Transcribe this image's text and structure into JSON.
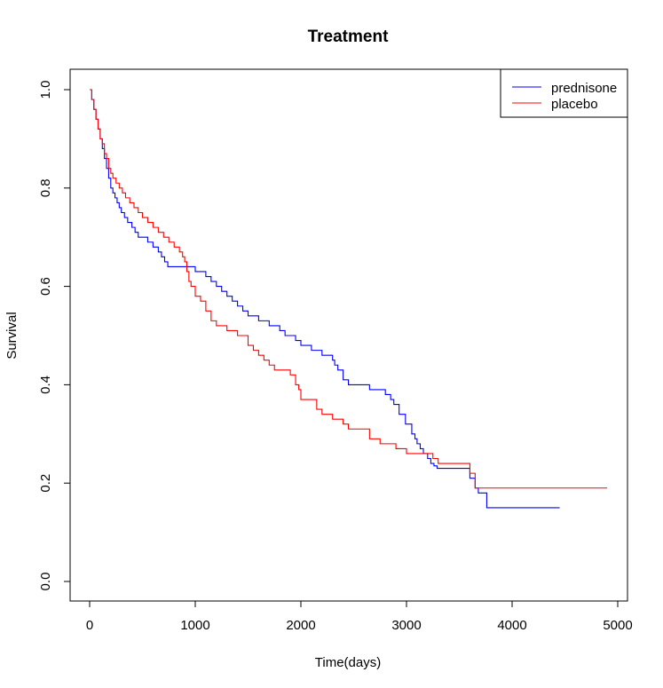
{
  "chart_data": {
    "type": "line",
    "title": "Treatment",
    "xlabel": "Time(days)",
    "ylabel": "Survival",
    "xlim": [
      0,
      5000
    ],
    "ylim": [
      0,
      1
    ],
    "x_ticks": [
      "0",
      "1000",
      "2000",
      "3000",
      "4000",
      "5000"
    ],
    "y_ticks": [
      "0.0",
      "0.2",
      "0.4",
      "0.6",
      "0.8",
      "1.0"
    ],
    "legend_position": "top-right",
    "grid": false,
    "series": [
      {
        "name": "prednisone",
        "color": "#0000ff",
        "step": true,
        "x": [
          0,
          20,
          40,
          60,
          80,
          100,
          120,
          140,
          160,
          180,
          200,
          220,
          240,
          260,
          280,
          300,
          330,
          360,
          400,
          430,
          460,
          500,
          550,
          600,
          650,
          680,
          710,
          740,
          780,
          820,
          850,
          880,
          950,
          1000,
          1050,
          1100,
          1150,
          1200,
          1250,
          1300,
          1350,
          1400,
          1450,
          1500,
          1600,
          1700,
          1800,
          1850,
          1900,
          1950,
          2000,
          2050,
          2100,
          2200,
          2300,
          2320,
          2350,
          2400,
          2450,
          2500,
          2650,
          2800,
          2850,
          2880,
          2930,
          2990,
          3050,
          3080,
          3100,
          3130,
          3160,
          3200,
          3230,
          3260,
          3290,
          3350,
          3600,
          3650,
          3680,
          3760,
          4450
        ],
        "y": [
          1.0,
          0.98,
          0.96,
          0.94,
          0.92,
          0.9,
          0.88,
          0.86,
          0.84,
          0.82,
          0.8,
          0.79,
          0.78,
          0.77,
          0.76,
          0.75,
          0.74,
          0.73,
          0.72,
          0.71,
          0.7,
          0.7,
          0.69,
          0.68,
          0.67,
          0.66,
          0.65,
          0.64,
          0.64,
          0.64,
          0.64,
          0.64,
          0.64,
          0.63,
          0.63,
          0.62,
          0.61,
          0.6,
          0.59,
          0.58,
          0.57,
          0.56,
          0.55,
          0.54,
          0.53,
          0.52,
          0.51,
          0.5,
          0.5,
          0.49,
          0.48,
          0.48,
          0.47,
          0.46,
          0.45,
          0.44,
          0.43,
          0.41,
          0.4,
          0.4,
          0.39,
          0.38,
          0.37,
          0.36,
          0.34,
          0.32,
          0.3,
          0.29,
          0.28,
          0.27,
          0.26,
          0.25,
          0.24,
          0.235,
          0.23,
          0.23,
          0.21,
          0.19,
          0.18,
          0.15,
          0.15
        ]
      },
      {
        "name": "placebo",
        "color": "#ff0000",
        "step": true,
        "x": [
          0,
          20,
          40,
          60,
          80,
          100,
          120,
          140,
          160,
          180,
          200,
          220,
          250,
          280,
          310,
          340,
          380,
          420,
          460,
          500,
          550,
          600,
          650,
          700,
          750,
          800,
          850,
          880,
          900,
          920,
          940,
          960,
          1000,
          1050,
          1100,
          1150,
          1200,
          1300,
          1400,
          1500,
          1550,
          1600,
          1650,
          1700,
          1750,
          1800,
          1850,
          1900,
          1950,
          1980,
          2000,
          2050,
          2150,
          2200,
          2250,
          2300,
          2400,
          2450,
          2500,
          2650,
          2750,
          2900,
          3000,
          3250,
          3300,
          3600,
          3650,
          3700,
          4900
        ],
        "y": [
          1.0,
          0.98,
          0.96,
          0.94,
          0.92,
          0.9,
          0.89,
          0.87,
          0.86,
          0.84,
          0.83,
          0.82,
          0.81,
          0.8,
          0.79,
          0.78,
          0.77,
          0.76,
          0.75,
          0.74,
          0.73,
          0.72,
          0.71,
          0.7,
          0.69,
          0.68,
          0.67,
          0.66,
          0.65,
          0.63,
          0.61,
          0.6,
          0.58,
          0.57,
          0.55,
          0.53,
          0.52,
          0.51,
          0.5,
          0.48,
          0.47,
          0.46,
          0.45,
          0.44,
          0.43,
          0.43,
          0.43,
          0.42,
          0.4,
          0.39,
          0.37,
          0.37,
          0.35,
          0.34,
          0.34,
          0.33,
          0.32,
          0.31,
          0.31,
          0.29,
          0.28,
          0.27,
          0.26,
          0.25,
          0.24,
          0.22,
          0.19,
          0.19,
          0.19
        ]
      }
    ]
  }
}
